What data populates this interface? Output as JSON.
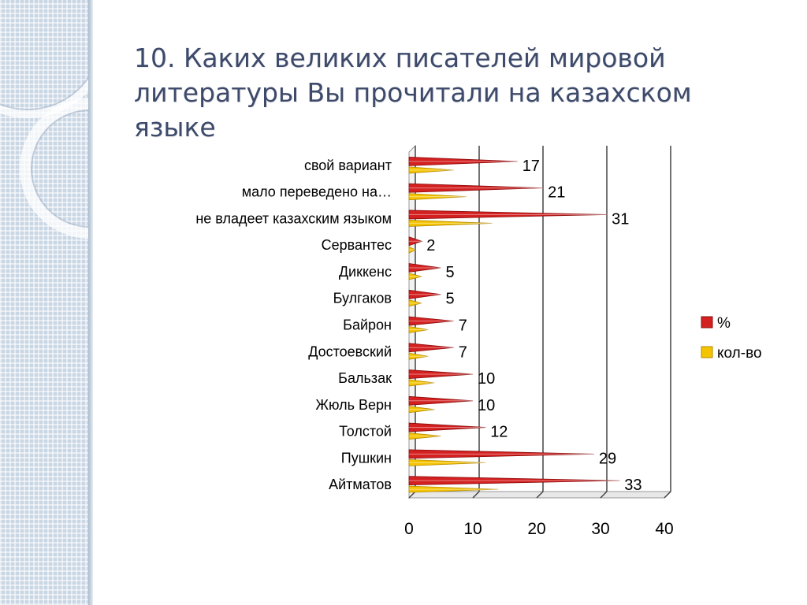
{
  "title": "10. Каких великих писателей мировой литературы Вы прочитали на казахском языке",
  "chart_data": {
    "type": "bar",
    "orientation": "horizontal",
    "categories": [
      "свой вариант",
      "мало переведено на…",
      "не владеет казахским языком",
      "Сервантес",
      "Диккенс",
      "Булгаков",
      "Байрон",
      "Достоевский",
      "Бальзак",
      "Жюль Верн",
      "Толстой",
      "Пушкин",
      "Айтматов"
    ],
    "series": [
      {
        "name": "%",
        "color": "#d42020",
        "values": [
          17,
          21,
          31,
          2,
          5,
          5,
          7,
          7,
          10,
          10,
          12,
          29,
          33
        ]
      },
      {
        "name": "кол-во",
        "color": "#f5c400",
        "values": [
          7,
          9,
          13,
          1,
          2,
          2,
          3,
          3,
          4,
          4,
          5,
          12,
          14
        ]
      }
    ],
    "xlim": [
      0,
      40
    ],
    "xticks": [
      "0",
      "10",
      "20",
      "30",
      "40"
    ],
    "grid": true,
    "legend": "right"
  }
}
